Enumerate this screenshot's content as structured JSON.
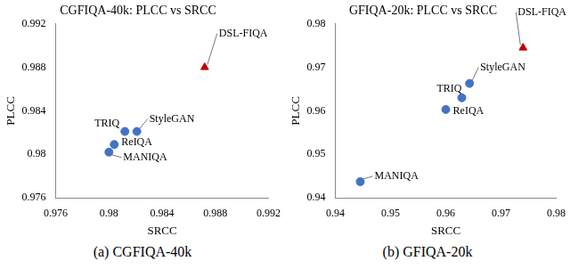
{
  "chart_data": [
    {
      "type": "scatter",
      "title": "CGFIQA-40k: PLCC vs SRCC",
      "caption": "(a) CGFIQA-40k",
      "x_label": "SRCC",
      "y_label": "PLCC",
      "xlim": [
        0.976,
        0.992
      ],
      "xticks": [
        0.976,
        0.98,
        0.984,
        0.988,
        0.992
      ],
      "ylim": [
        0.976,
        0.992
      ],
      "yticks": [
        0.976,
        0.98,
        0.984,
        0.988,
        0.992
      ],
      "grid": false,
      "series": [
        {
          "name": "DSL-FIQA",
          "color": "#c00000",
          "marker": "triangle",
          "x": [
            0.9872
          ],
          "values": [
            0.988
          ]
        },
        {
          "name": "TRIQ",
          "color": "#4472c4",
          "marker": "circle",
          "x": [
            0.9812
          ],
          "values": [
            0.9821
          ]
        },
        {
          "name": "StyleGAN",
          "color": "#4472c4",
          "marker": "circle",
          "x": [
            0.9821
          ],
          "values": [
            0.9821
          ]
        },
        {
          "name": "ReIQA",
          "color": "#4472c4",
          "marker": "circle",
          "x": [
            0.9804
          ],
          "values": [
            0.9809
          ]
        },
        {
          "name": "MANIQA",
          "color": "#4472c4",
          "marker": "circle",
          "x": [
            0.98
          ],
          "values": [
            0.9802
          ]
        }
      ]
    },
    {
      "type": "scatter",
      "title": "GFIQA-20k: PLCC vs SRCC",
      "caption": "(b) GFIQA-20k",
      "x_label": "SRCC",
      "y_label": "PLCC",
      "xlim": [
        0.94,
        0.98
      ],
      "xticks": [
        0.94,
        0.95,
        0.96,
        0.97,
        0.98
      ],
      "ylim": [
        0.94,
        0.98
      ],
      "yticks": [
        0.94,
        0.95,
        0.96,
        0.97,
        0.98
      ],
      "grid": false,
      "series": [
        {
          "name": "DSL-FIQA",
          "color": "#c00000",
          "marker": "triangle",
          "x": [
            0.974
          ],
          "values": [
            0.9745
          ]
        },
        {
          "name": "StyleGAN",
          "color": "#4472c4",
          "marker": "circle",
          "x": [
            0.9643
          ],
          "values": [
            0.9663
          ]
        },
        {
          "name": "TRIQ",
          "color": "#4472c4",
          "marker": "circle",
          "x": [
            0.9629
          ],
          "values": [
            0.963
          ]
        },
        {
          "name": "ReIQA",
          "color": "#4472c4",
          "marker": "circle",
          "x": [
            0.96
          ],
          "values": [
            0.9603
          ]
        },
        {
          "name": "MANIQA",
          "color": "#4472c4",
          "marker": "circle",
          "x": [
            0.9445
          ],
          "values": [
            0.9437
          ]
        }
      ]
    }
  ]
}
